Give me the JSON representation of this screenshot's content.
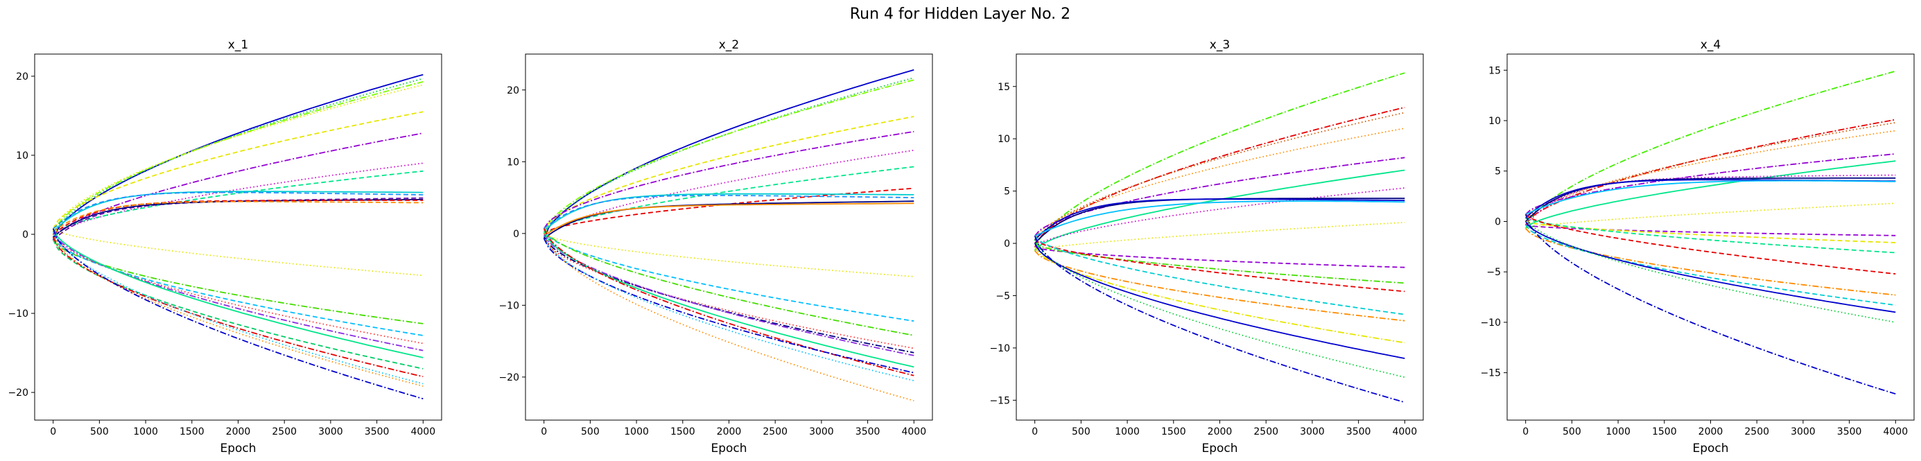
{
  "figure": {
    "suptitle": "Run 4 for Hidden Layer No. 2"
  },
  "chart_data": [
    {
      "type": "line",
      "title": "x_1",
      "xlabel": "Epoch",
      "ylabel": "",
      "xlim": [
        -200,
        4200
      ],
      "ylim": [
        -23.5,
        22.8
      ],
      "xticks": [
        0,
        500,
        1000,
        1500,
        2000,
        2500,
        3000,
        3500,
        4000
      ],
      "yticks": [
        -20,
        -10,
        0,
        10,
        20
      ],
      "grid": false,
      "legend": "none",
      "series": [
        {
          "color": "#0000cd",
          "dash": "solid",
          "end": 20.2,
          "shape": "grow"
        },
        {
          "color": "#00cc33",
          "dash": "dotted",
          "end": 19.7,
          "shape": "grow"
        },
        {
          "color": "#7fff00",
          "dash": "dashdot",
          "end": 19.3,
          "shape": "grow"
        },
        {
          "color": "#e6e600",
          "dash": "dotted",
          "end": 18.9,
          "shape": "grow"
        },
        {
          "color": "#e6e600",
          "dash": "dashed",
          "end": 15.5,
          "shape": "grow"
        },
        {
          "color": "#9400d3",
          "dash": "dashdot",
          "end": 12.8,
          "shape": "grow"
        },
        {
          "color": "#cc00cc",
          "dash": "dotted",
          "end": 9.0,
          "shape": "grow"
        },
        {
          "color": "#00e68a",
          "dash": "dashed",
          "end": 8.0,
          "shape": "grow"
        },
        {
          "color": "#00ced1",
          "dash": "solid",
          "end": 5.3,
          "shape": "sat"
        },
        {
          "color": "#1e90ff",
          "dash": "dashed",
          "end": 5.0,
          "shape": "sat"
        },
        {
          "color": "#6a0dad",
          "dash": "dashed",
          "end": 4.6,
          "shape": "sat"
        },
        {
          "color": "#000080",
          "dash": "solid",
          "end": 4.4,
          "shape": "sat"
        },
        {
          "color": "#e60000",
          "dash": "dashed",
          "end": 4.3,
          "shape": "sat"
        },
        {
          "color": "#ff8c00",
          "dash": "dashed",
          "end": 4.0,
          "shape": "sat"
        },
        {
          "color": "#e6e600",
          "dash": "dotted",
          "end": -5.2,
          "shape": "grow"
        },
        {
          "color": "#44dd00",
          "dash": "dashdot",
          "end": -11.3,
          "shape": "grow"
        },
        {
          "color": "#00bfff",
          "dash": "dashed",
          "end": -12.8,
          "shape": "grow"
        },
        {
          "color": "#ff3030",
          "dash": "dotted",
          "end": -13.8,
          "shape": "grow"
        },
        {
          "color": "#8a2be2",
          "dash": "dashdot",
          "end": -14.7,
          "shape": "grow"
        },
        {
          "color": "#00e68a",
          "dash": "solid",
          "end": -15.6,
          "shape": "grow"
        },
        {
          "color": "#00cc66",
          "dash": "dashed",
          "end": -17.0,
          "shape": "grow"
        },
        {
          "color": "#e60000",
          "dash": "dashdot",
          "end": -18.0,
          "shape": "grow"
        },
        {
          "color": "#ff8c00",
          "dash": "dotted",
          "end": -19.2,
          "shape": "grow"
        },
        {
          "color": "#00bfff",
          "dash": "dotted",
          "end": -18.9,
          "shape": "grow"
        },
        {
          "color": "#0000cd",
          "dash": "dashdot",
          "end": -20.8,
          "shape": "grow"
        }
      ]
    },
    {
      "type": "line",
      "title": "x_2",
      "xlabel": "Epoch",
      "ylabel": "",
      "xlim": [
        -200,
        4200
      ],
      "ylim": [
        -26,
        25
      ],
      "xticks": [
        0,
        500,
        1000,
        1500,
        2000,
        2500,
        3000,
        3500,
        4000
      ],
      "yticks": [
        -20,
        -10,
        0,
        10,
        20
      ],
      "grid": false,
      "legend": "none",
      "series": [
        {
          "color": "#0000cd",
          "dash": "solid",
          "end": 22.8,
          "shape": "grow"
        },
        {
          "color": "#00cc33",
          "dash": "dotted",
          "end": 21.7,
          "shape": "grow"
        },
        {
          "color": "#7fff00",
          "dash": "dashdot",
          "end": 21.4,
          "shape": "grow"
        },
        {
          "color": "#e6e600",
          "dash": "dashed",
          "end": 16.3,
          "shape": "grow"
        },
        {
          "color": "#9400d3",
          "dash": "dashdot",
          "end": 14.2,
          "shape": "grow"
        },
        {
          "color": "#cc00cc",
          "dash": "dotted",
          "end": 11.6,
          "shape": "grow"
        },
        {
          "color": "#00e68a",
          "dash": "dashed",
          "end": 9.3,
          "shape": "grow"
        },
        {
          "color": "#e60000",
          "dash": "dashed",
          "end": 6.3,
          "shape": "grow"
        },
        {
          "color": "#00ced1",
          "dash": "solid",
          "end": 5.4,
          "shape": "sat"
        },
        {
          "color": "#1e90ff",
          "dash": "dashed",
          "end": 5.0,
          "shape": "sat"
        },
        {
          "color": "#000080",
          "dash": "solid",
          "end": 4.5,
          "shape": "sat"
        },
        {
          "color": "#ff8c00",
          "dash": "solid",
          "end": 4.2,
          "shape": "sat"
        },
        {
          "color": "#e6e600",
          "dash": "dotted",
          "end": -6.0,
          "shape": "grow"
        },
        {
          "color": "#00bfff",
          "dash": "dashed",
          "end": -12.2,
          "shape": "grow"
        },
        {
          "color": "#44dd00",
          "dash": "dashdot",
          "end": -14.2,
          "shape": "grow"
        },
        {
          "color": "#ff3030",
          "dash": "dotted",
          "end": -16.0,
          "shape": "grow"
        },
        {
          "color": "#000080",
          "dash": "dashdot",
          "end": -16.6,
          "shape": "grow"
        },
        {
          "color": "#8a2be2",
          "dash": "dashdot",
          "end": -17.0,
          "shape": "grow"
        },
        {
          "color": "#00e68a",
          "dash": "solid",
          "end": -18.6,
          "shape": "grow"
        },
        {
          "color": "#e60000",
          "dash": "dashdot",
          "end": -19.8,
          "shape": "grow"
        },
        {
          "color": "#0000cd",
          "dash": "dashdot",
          "end": -19.4,
          "shape": "grow"
        },
        {
          "color": "#00bfff",
          "dash": "dotted",
          "end": -20.5,
          "shape": "grow"
        },
        {
          "color": "#ff8c00",
          "dash": "dotted",
          "end": -23.3,
          "shape": "grow"
        }
      ]
    },
    {
      "type": "line",
      "title": "x_3",
      "xlabel": "Epoch",
      "ylabel": "",
      "xlim": [
        -200,
        4200
      ],
      "ylim": [
        -16.9,
        18.1
      ],
      "xticks": [
        0,
        500,
        1000,
        1500,
        2000,
        2500,
        3000,
        3500,
        4000
      ],
      "yticks": [
        -15,
        -10,
        -5,
        0,
        5,
        10,
        15
      ],
      "grid": false,
      "legend": "none",
      "series": [
        {
          "color": "#44ee00",
          "dash": "dashdot",
          "end": 16.3,
          "shape": "grow"
        },
        {
          "color": "#e60000",
          "dash": "dashdot",
          "end": 13.0,
          "shape": "grow"
        },
        {
          "color": "#cc5500",
          "dash": "dotted",
          "end": 12.5,
          "shape": "grow"
        },
        {
          "color": "#ff8c00",
          "dash": "dotted",
          "end": 11.0,
          "shape": "grow"
        },
        {
          "color": "#9400d3",
          "dash": "dashdot",
          "end": 8.2,
          "shape": "grow"
        },
        {
          "color": "#00e68a",
          "dash": "solid",
          "end": 7.0,
          "shape": "grow"
        },
        {
          "color": "#cc00cc",
          "dash": "dotted",
          "end": 5.3,
          "shape": "grow"
        },
        {
          "color": "#000080",
          "dash": "solid",
          "end": 4.3,
          "shape": "sat"
        },
        {
          "color": "#0000cd",
          "dash": "solid",
          "end": 4.1,
          "shape": "sat"
        },
        {
          "color": "#00bfff",
          "dash": "solid",
          "end": 4.0,
          "shape": "slow"
        },
        {
          "color": "#e6e600",
          "dash": "dotted",
          "end": 2.0,
          "shape": "grow"
        },
        {
          "color": "#9400d3",
          "dash": "dashed",
          "end": -2.3,
          "shape": "grow"
        },
        {
          "color": "#44dd00",
          "dash": "dashdot",
          "end": -3.8,
          "shape": "grow"
        },
        {
          "color": "#e60000",
          "dash": "dashed",
          "end": -4.6,
          "shape": "grow"
        },
        {
          "color": "#00ced1",
          "dash": "dashed",
          "end": -6.8,
          "shape": "grow"
        },
        {
          "color": "#ff8c00",
          "dash": "dashdot",
          "end": -7.4,
          "shape": "grow"
        },
        {
          "color": "#e6e600",
          "dash": "dashdot",
          "end": -9.5,
          "shape": "grow"
        },
        {
          "color": "#0000cd",
          "dash": "solid",
          "end": -11.0,
          "shape": "grow"
        },
        {
          "color": "#00cc33",
          "dash": "dotted",
          "end": -12.8,
          "shape": "grow"
        },
        {
          "color": "#0000cd",
          "dash": "dashdot",
          "end": -15.2,
          "shape": "grow"
        }
      ]
    },
    {
      "type": "line",
      "title": "x_4",
      "xlabel": "Epoch",
      "ylabel": "",
      "xlim": [
        -200,
        4200
      ],
      "ylim": [
        -19.7,
        16.6
      ],
      "xticks": [
        0,
        500,
        1000,
        1500,
        2000,
        2500,
        3000,
        3500,
        4000
      ],
      "yticks": [
        -15,
        -10,
        -5,
        0,
        5,
        10,
        15
      ],
      "grid": false,
      "legend": "none",
      "series": [
        {
          "color": "#44ee00",
          "dash": "dashdot",
          "end": 14.9,
          "shape": "grow"
        },
        {
          "color": "#e60000",
          "dash": "dashdot",
          "end": 10.1,
          "shape": "grow"
        },
        {
          "color": "#cc5500",
          "dash": "dotted",
          "end": 9.8,
          "shape": "grow"
        },
        {
          "color": "#ff8c00",
          "dash": "dotted",
          "end": 9.0,
          "shape": "grow"
        },
        {
          "color": "#9400d3",
          "dash": "dashdot",
          "end": 6.7,
          "shape": "grow"
        },
        {
          "color": "#00e68a",
          "dash": "solid",
          "end": 6.0,
          "shape": "grow"
        },
        {
          "color": "#cc00cc",
          "dash": "dotted",
          "end": 4.6,
          "shape": "sat"
        },
        {
          "color": "#000080",
          "dash": "solid",
          "end": 4.3,
          "shape": "sat"
        },
        {
          "color": "#0000cd",
          "dash": "solid",
          "end": 4.0,
          "shape": "sat"
        },
        {
          "color": "#00bfff",
          "dash": "solid",
          "end": 4.0,
          "shape": "slow"
        },
        {
          "color": "#e6e600",
          "dash": "dotted",
          "end": 1.8,
          "shape": "grow"
        },
        {
          "color": "#9400d3",
          "dash": "dashed",
          "end": -1.4,
          "shape": "grow"
        },
        {
          "color": "#e6e600",
          "dash": "dashed",
          "end": -2.1,
          "shape": "grow"
        },
        {
          "color": "#00e68a",
          "dash": "dashed",
          "end": -3.1,
          "shape": "grow"
        },
        {
          "color": "#e60000",
          "dash": "dashed",
          "end": -5.2,
          "shape": "grow"
        },
        {
          "color": "#ff8c00",
          "dash": "dashdot",
          "end": -7.3,
          "shape": "grow"
        },
        {
          "color": "#00ced1",
          "dash": "dashed",
          "end": -8.3,
          "shape": "grow"
        },
        {
          "color": "#0000cd",
          "dash": "solid",
          "end": -9.0,
          "shape": "grow"
        },
        {
          "color": "#00cc33",
          "dash": "dotted",
          "end": -10.0,
          "shape": "grow"
        },
        {
          "color": "#0000cd",
          "dash": "dashdot",
          "end": -17.1,
          "shape": "grow"
        }
      ]
    }
  ]
}
